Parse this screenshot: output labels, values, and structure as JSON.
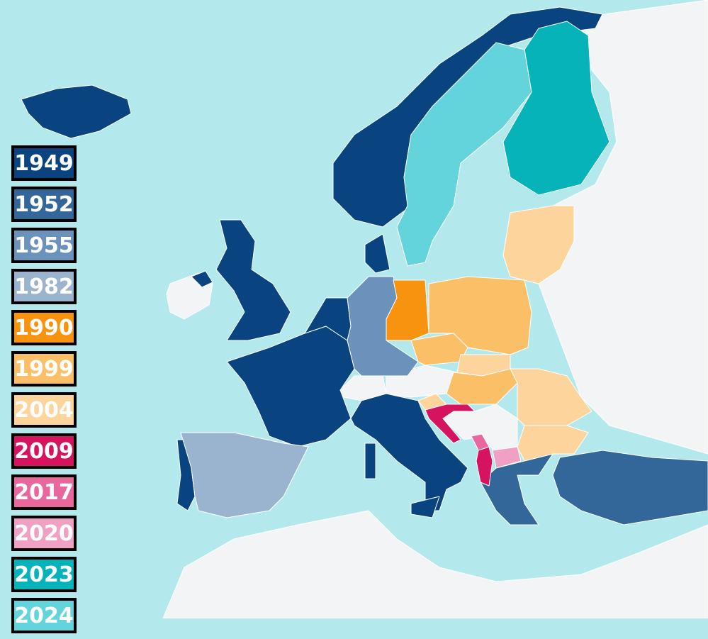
{
  "map": {
    "colors": {
      "sea": "#b3e9ec",
      "non_member": "#f2f4f5",
      "border": "#ffffff"
    },
    "legend": [
      {
        "year": "1949",
        "color": "#0a4480"
      },
      {
        "year": "1952",
        "color": "#336699"
      },
      {
        "year": "1955",
        "color": "#6a92bb"
      },
      {
        "year": "1982",
        "color": "#9ab3cf"
      },
      {
        "year": "1990",
        "color": "#f7930f"
      },
      {
        "year": "1999",
        "color": "#fbbf68"
      },
      {
        "year": "2004",
        "color": "#fcd49c"
      },
      {
        "year": "2009",
        "color": "#d6135f"
      },
      {
        "year": "2017",
        "color": "#e8679d"
      },
      {
        "year": "2020",
        "color": "#f0a1c3"
      },
      {
        "year": "2023",
        "color": "#05b3b8"
      },
      {
        "year": "2024",
        "color": "#63d4dc"
      }
    ]
  }
}
